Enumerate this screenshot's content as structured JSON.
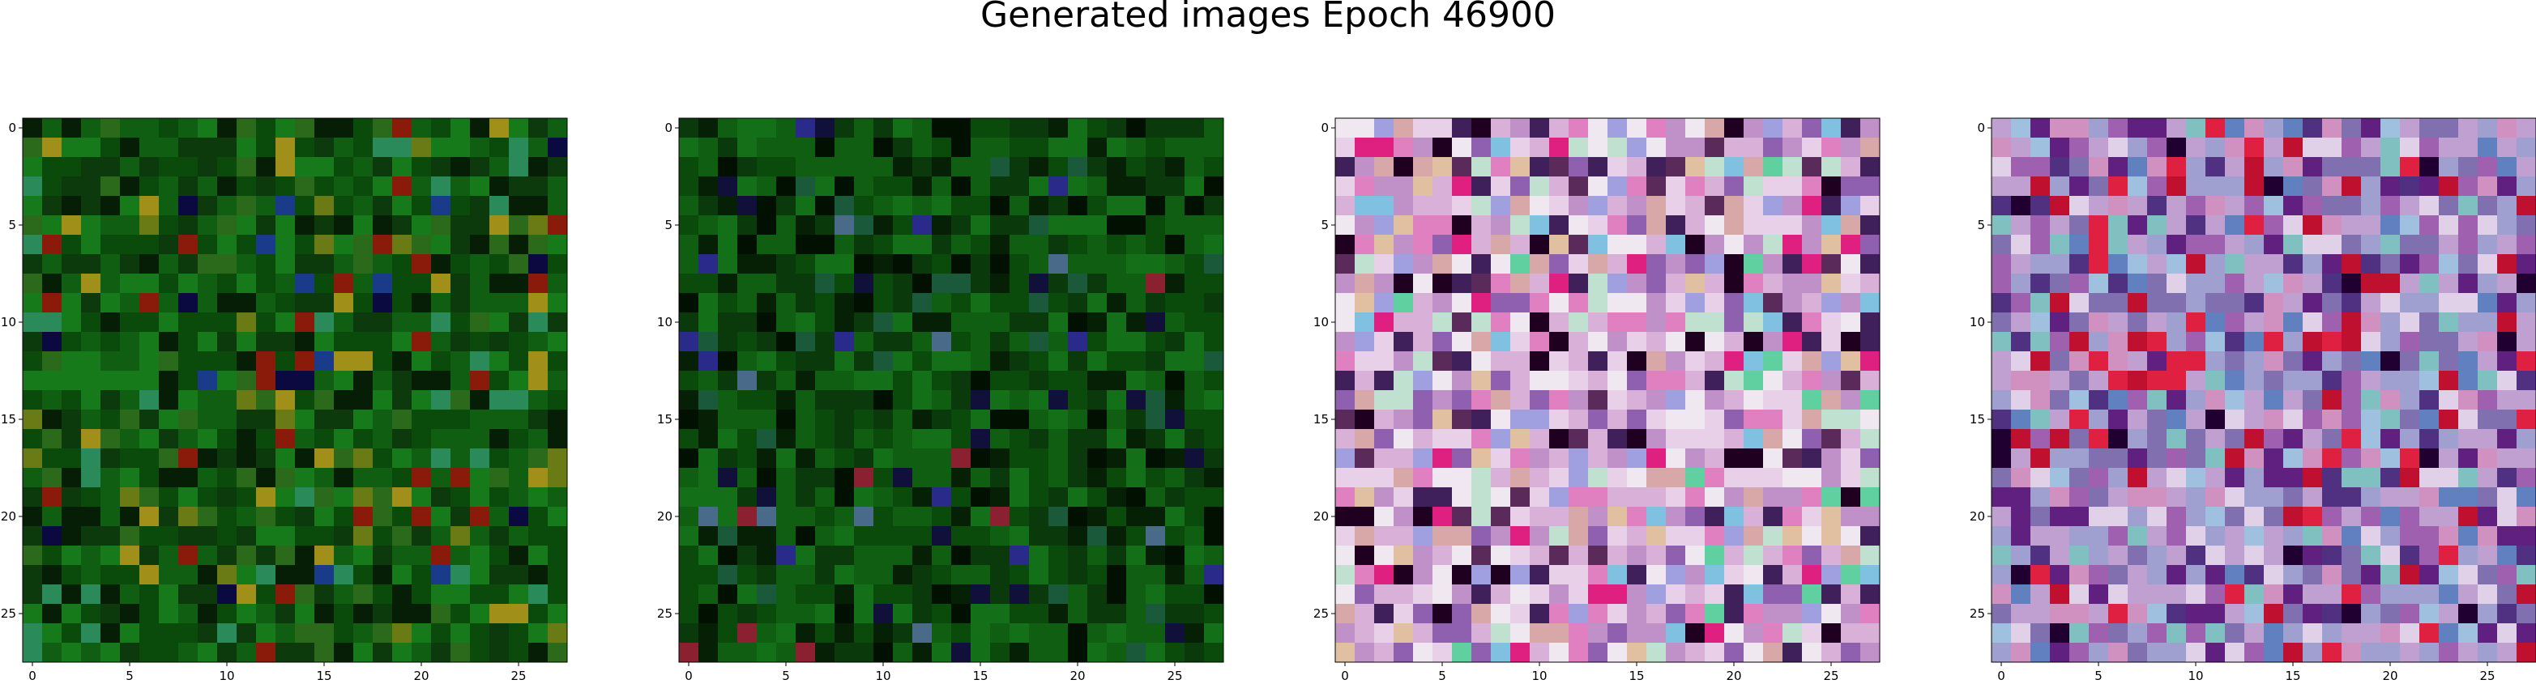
{
  "figure": {
    "title": "Generated images Epoch 46900"
  },
  "chart_data": [
    {
      "type": "heatmap",
      "grid": [
        28,
        28
      ],
      "xticks": [
        0,
        5,
        10,
        15,
        20,
        25
      ],
      "yticks": [
        0,
        5,
        10,
        15,
        20,
        25
      ],
      "palette": [
        "#0a4a0a",
        "#0f5e12",
        "#177a1a",
        "#0c3a0c",
        "#061e06",
        "#2a6a1a",
        "#6a7a14",
        "#a0901a",
        "#8a1a0a",
        "#1a3a8a",
        "#0a0a40",
        "#2a8a5a"
      ],
      "weights": [
        18,
        18,
        14,
        16,
        10,
        8,
        4,
        3,
        3,
        1,
        2,
        3
      ]
    },
    {
      "type": "heatmap",
      "grid": [
        28,
        28
      ],
      "xticks": [
        0,
        5,
        10,
        15,
        20,
        25
      ],
      "yticks": [
        0,
        5,
        10,
        15,
        20,
        25
      ],
      "palette": [
        "#0a4a0a",
        "#0f5e12",
        "#147018",
        "#0a3a0c",
        "#052005",
        "#021002",
        "#1a5a3a",
        "#10103a",
        "#2a2a8a",
        "#8a2030",
        "#4a6a8a"
      ],
      "weights": [
        20,
        20,
        14,
        16,
        12,
        8,
        3,
        2,
        1,
        1,
        1
      ]
    },
    {
      "type": "heatmap",
      "grid": [
        28,
        28
      ],
      "xticks": [
        0,
        5,
        10,
        15,
        20,
        25
      ],
      "yticks": [
        0,
        5,
        10,
        15,
        20,
        25
      ],
      "palette": [
        "#d8b0d8",
        "#e8d0e8",
        "#c090c8",
        "#f0e8f0",
        "#9060b0",
        "#e080c0",
        "#c0e0d0",
        "#d8a8a8",
        "#40205a",
        "#200020",
        "#e02080",
        "#80c0e0",
        "#5a2a5a",
        "#60d0a0",
        "#a0a0e0",
        "#e0c0a0"
      ],
      "weights": [
        12,
        10,
        10,
        8,
        6,
        6,
        5,
        5,
        5,
        4,
        3,
        3,
        3,
        2,
        5,
        3
      ]
    },
    {
      "type": "heatmap",
      "grid": [
        28,
        28
      ],
      "xticks": [
        0,
        5,
        10,
        15,
        20,
        25
      ],
      "yticks": [
        0,
        5,
        10,
        15,
        20,
        25
      ],
      "palette": [
        "#a0a0d0",
        "#8070b0",
        "#c0a0d0",
        "#e0d0e8",
        "#a060b0",
        "#602080",
        "#c01030",
        "#e02040",
        "#80c0c0",
        "#6080c0",
        "#d090c0",
        "#503080",
        "#a0c0e0",
        "#200030"
      ],
      "weights": [
        12,
        10,
        10,
        6,
        8,
        6,
        6,
        5,
        5,
        5,
        6,
        6,
        4,
        2
      ]
    }
  ]
}
